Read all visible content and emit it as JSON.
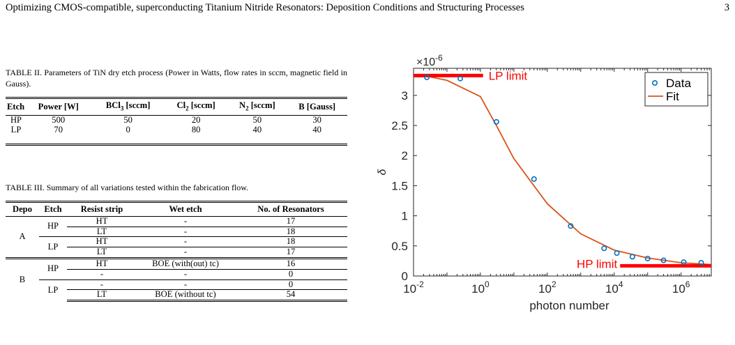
{
  "header": {
    "title": "Optimizing CMOS-compatible, superconducting Titanium Nitride Resonators: Deposition Conditions and Structuring Processes",
    "page_number": "3"
  },
  "table2": {
    "caption": "TABLE II. Parameters of TiN dry etch process (Power in Watts, flow rates in sccm, magnetic field in Gauss).",
    "headers": [
      "Etch",
      "Power [W]",
      "BCl",
      "3",
      " [sccm]",
      "Cl",
      "2",
      " [sccm]",
      "N",
      "2",
      " [sccm]",
      "B [Gauss]"
    ],
    "rows": [
      [
        "HP",
        "500",
        "50",
        "20",
        "50",
        "30"
      ],
      [
        "LP",
        "70",
        "0",
        "80",
        "40",
        "40"
      ]
    ]
  },
  "table3": {
    "caption": "TABLE III. Summary of all variations tested within the fabrication flow.",
    "headers": [
      "Depo",
      "Etch",
      "Resist strip",
      "Wet etch",
      "No. of Resonators"
    ],
    "groups": {
      "A": "A",
      "B": "B",
      "A_HP": "HP",
      "A_LP": "LP",
      "B_HP": "HP",
      "B_LP": "LP"
    },
    "rows": [
      [
        "HT",
        "-",
        "17"
      ],
      [
        "LT",
        "-",
        "18"
      ],
      [
        "HT",
        "-",
        "18"
      ],
      [
        "LT",
        "-",
        "17"
      ],
      [
        "HT",
        "BOE (with(out) tc)",
        "16"
      ],
      [
        "-",
        "-",
        "0"
      ],
      [
        "-",
        "-",
        "0"
      ],
      [
        "LT",
        "BOE (without tc)",
        "54"
      ]
    ]
  },
  "chart_data": {
    "type": "scatter",
    "xlabel": "photon number",
    "ylabel": "δ",
    "y_multiplier": "×10",
    "y_multiplier_exp": "-6",
    "x_scale": "log",
    "xlim": [
      0.01,
      8000000
    ],
    "ylim": [
      0,
      3.45
    ],
    "x_ticks": [
      {
        "base": "10",
        "exp": "-2",
        "value": 0.01
      },
      {
        "base": "10",
        "exp": "0",
        "value": 1
      },
      {
        "base": "10",
        "exp": "2",
        "value": 100
      },
      {
        "base": "10",
        "exp": "4",
        "value": 10000
      },
      {
        "base": "10",
        "exp": "6",
        "value": 1000000
      }
    ],
    "y_ticks": [
      "0",
      "0.5",
      "1",
      "1.5",
      "2",
      "2.5",
      "3"
    ],
    "legend": {
      "position": "top-right",
      "entries": [
        "Data",
        "Fit"
      ]
    },
    "colors": {
      "data": "#0072BD",
      "fit": "#D95319",
      "limit": "#ff0000"
    },
    "series": [
      {
        "name": "Data",
        "x": [
          0.025,
          0.25,
          3,
          40,
          500,
          5000,
          12000,
          35000,
          100000,
          300000,
          1200000,
          4000000
        ],
        "y": [
          3.3,
          3.28,
          2.56,
          1.61,
          0.83,
          0.46,
          0.38,
          0.32,
          0.29,
          0.26,
          0.23,
          0.22
        ]
      },
      {
        "name": "Fit",
        "x": [
          0.01,
          0.03,
          0.1,
          1,
          3,
          10,
          100,
          1000,
          10000,
          100000,
          1000000,
          8000000
        ],
        "y": [
          3.31,
          3.31,
          3.25,
          2.98,
          2.5,
          1.95,
          1.2,
          0.7,
          0.43,
          0.3,
          0.22,
          0.19
        ]
      }
    ],
    "annotations": [
      {
        "label": "LP limit",
        "y": 3.33,
        "x_from": 0.01,
        "x_to": 1.2
      },
      {
        "label": "HP limit",
        "y": 0.17,
        "x_from": 15000,
        "x_to": 8000000
      }
    ]
  }
}
